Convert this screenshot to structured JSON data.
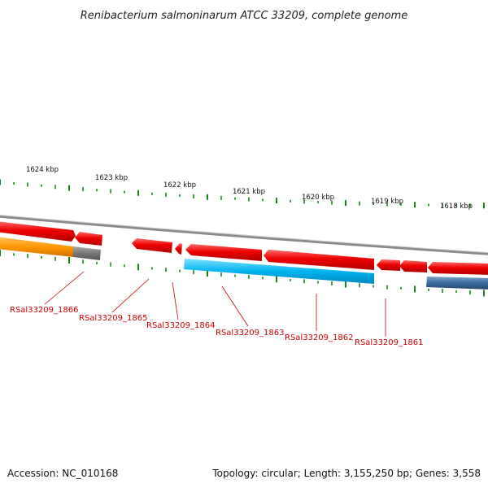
{
  "title": "Renibacterium salmoninarum ATCC 33209, complete genome",
  "footer": {
    "accession": "Accession: NC_010168",
    "summary": "Topology: circular; Length: 3,155,250 bp; Genes: 3,558"
  },
  "scale": {
    "tick_labels": [
      "1624 kbp",
      "1623 kbp",
      "1622 kbp",
      "1621 kbp",
      "1620 kbp",
      "1619 kbp",
      "1618 kbp"
    ]
  },
  "colors": {
    "forward_gene": "#ee0000",
    "reverse_gene_cyan": "#00b4f0",
    "reverse_gene_orange": "#ff9900",
    "reverse_gene_gray": "#777777",
    "reverse_gene_steel": "#3a6a9a",
    "backbone": "#8a8a8a",
    "tick": "#138a13",
    "label": "#cc0000"
  },
  "genes": [
    {
      "label": "RSal33209_1866"
    },
    {
      "label": "RSal33209_1865"
    },
    {
      "label": "RSal33209_1864"
    },
    {
      "label": "RSal33209_1863"
    },
    {
      "label": "RSal33209_1862"
    },
    {
      "label": "RSal33209_1861"
    }
  ]
}
